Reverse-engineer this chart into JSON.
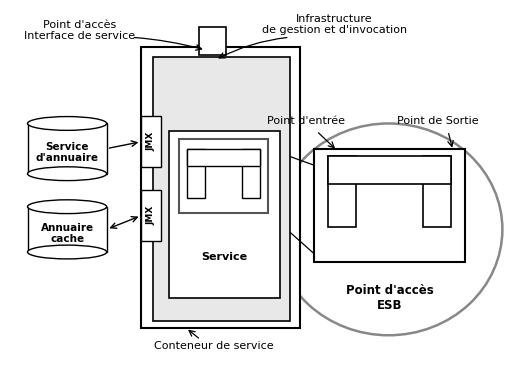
{
  "bg_color": "#c8c8c8",
  "labels": {
    "point_acces": "Point d'accès\nInterface de service",
    "infra": "Infrastructure\nde gestion et d'invocation",
    "service_annuaire": "Service\nd'annuaire",
    "annuaire_cache": "Annuaire\ncache",
    "service": "Service",
    "conteneur": "Conteneur de service",
    "jmx1": "JMX",
    "jmx2": "JMX",
    "point_entree": "Point d'entrée",
    "point_sortie": "Point de Sortie",
    "point_acces_esb": "Point d'accès\nESB"
  }
}
